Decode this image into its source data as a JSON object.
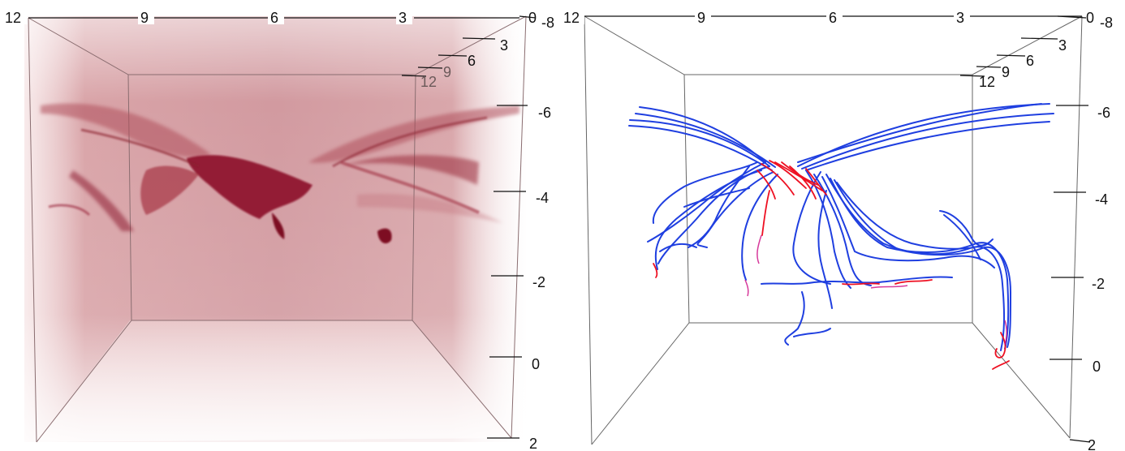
{
  "panels": [
    {
      "id": "left",
      "rendering": "volume",
      "color": "#9e1b32",
      "axes": {
        "top": [
          "12",
          "9",
          "6",
          "3",
          "0"
        ],
        "depth": [
          "-8",
          "3",
          "6",
          "9",
          "12"
        ],
        "right": [
          "-6",
          "-4",
          "-2",
          "0",
          "2"
        ]
      }
    },
    {
      "id": "right",
      "rendering": "field-lines",
      "colors": {
        "lines": "#1f3fe0",
        "highlight": "#ee1022"
      },
      "axes": {
        "top": [
          "12",
          "9",
          "6",
          "3",
          "0"
        ],
        "depth": [
          "-8",
          "3",
          "6",
          "9",
          "12"
        ],
        "right": [
          "-6",
          "-4",
          "-2",
          "0",
          "2"
        ]
      }
    }
  ]
}
